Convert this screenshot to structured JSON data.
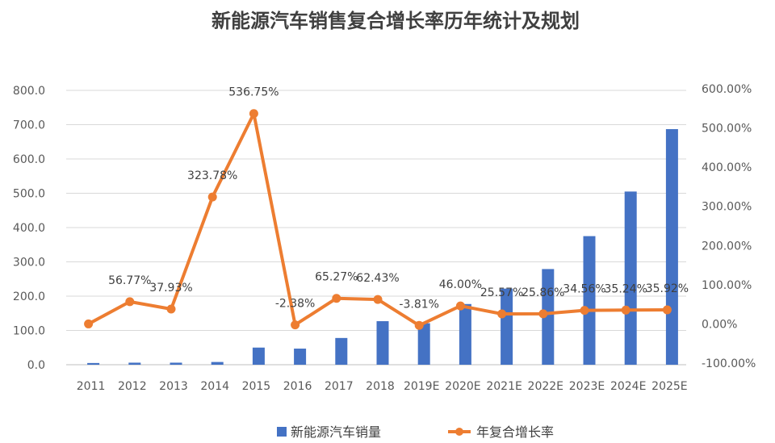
{
  "chart_data": {
    "type": "bar+line",
    "title": "新能源汽车销售复合增长率历年统计及规划",
    "categories": [
      "2011",
      "2012",
      "2013",
      "2014",
      "2015",
      "2016",
      "2017",
      "2018",
      "2019E",
      "2020E",
      "2021E",
      "2022E",
      "2023E",
      "2024E",
      "2025E"
    ],
    "series": [
      {
        "name": "新能源汽车销量",
        "type": "bar",
        "axis": "left",
        "color": "#4472C4",
        "values": [
          5.0,
          6.0,
          6.0,
          8.0,
          50.0,
          47.0,
          78.0,
          127.0,
          121.0,
          177.0,
          222.0,
          279.0,
          375.0,
          505.0,
          687.0
        ]
      },
      {
        "name": "年复合增长率",
        "type": "line",
        "axis": "right",
        "color": "#ED7D31",
        "values": [
          0.0,
          56.77,
          37.93,
          323.78,
          536.75,
          -2.38,
          65.27,
          62.43,
          -3.81,
          46.0,
          25.57,
          25.86,
          34.56,
          35.24,
          35.92
        ],
        "labels": [
          "",
          "56.77%",
          "37.93%",
          "323.78%",
          "536.75%",
          "-2.38%",
          "65.27%",
          "62.43%",
          "-3.81%",
          "46.00%",
          "25.57%",
          "25.86%",
          "34.56%",
          "35.24%",
          "35.92%"
        ]
      }
    ],
    "y_left": {
      "ylim": [
        0,
        800
      ],
      "ticks": [
        "0.0",
        "100.0",
        "200.0",
        "300.0",
        "400.0",
        "500.0",
        "600.0",
        "700.0",
        "800.0"
      ]
    },
    "y_right": {
      "ylim": [
        -100,
        600
      ],
      "ticks": [
        "-100.00%",
        "0.00%",
        "100.00%",
        "200.00%",
        "300.00%",
        "400.00%",
        "500.00%",
        "600.00%"
      ]
    },
    "grid": true,
    "legend": "bottom"
  }
}
